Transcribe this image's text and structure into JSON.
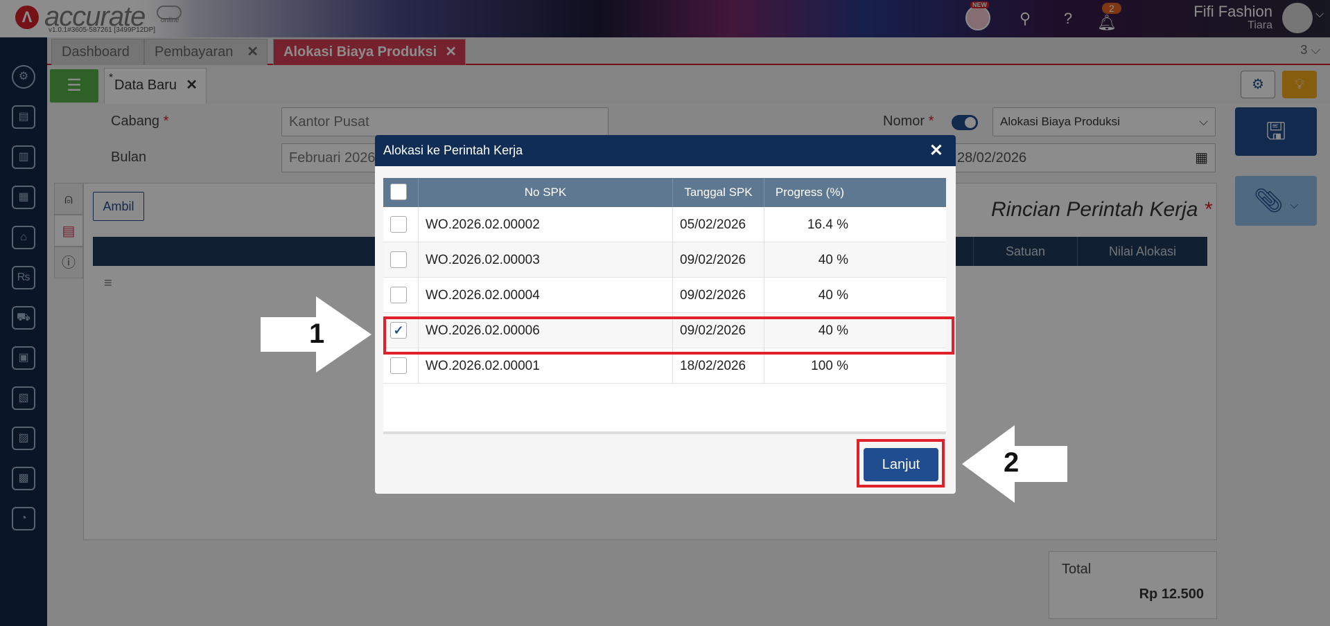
{
  "topbar": {
    "logo_text": "accurate",
    "logo_sub": "online",
    "version": "v1.0.1#3605-587261 [3499P12DP]",
    "new_badge": "NEW",
    "notif_count": "2",
    "user_name": "Fifi Fashion",
    "user_sub": "Tiara"
  },
  "tabs": [
    {
      "label": "Dashboard"
    },
    {
      "label": "Pembayaran"
    },
    {
      "label": "Alokasi Biaya Produksi"
    }
  ],
  "tab_count": "3 ⌵",
  "subtab": {
    "label": "Data Baru"
  },
  "form": {
    "cabang_label": "Cabang",
    "cabang_value": "Kantor Pusat",
    "bulan_label": "Bulan",
    "bulan_value": "Februari 2026",
    "nomor_label": "Nomor",
    "nomor_select": "Alokasi Biaya Produksi",
    "date_value": "28/02/2026"
  },
  "panel": {
    "ambil_label": "Ambil",
    "rincian_title": "Rincian Perintah Kerja",
    "col_satuan": "Satuan",
    "col_nilai": "Nilai Alokasi"
  },
  "total": {
    "label": "Total",
    "value": "Rp 12.500"
  },
  "modal": {
    "title": "Alokasi ke Perintah Kerja",
    "col_no": "No SPK",
    "col_tanggal": "Tanggal SPK",
    "col_progress": "Progress (%)",
    "rows": [
      {
        "no": "WO.2026.02.00002",
        "tanggal": "05/02/2026",
        "progress": "16.4 %",
        "checked": false
      },
      {
        "no": "WO.2026.02.00003",
        "tanggal": "09/02/2026",
        "progress": "40 %",
        "checked": false
      },
      {
        "no": "WO.2026.02.00004",
        "tanggal": "09/02/2026",
        "progress": "40 %",
        "checked": false
      },
      {
        "no": "WO.2026.02.00006",
        "tanggal": "09/02/2026",
        "progress": "40 %",
        "checked": true
      },
      {
        "no": "WO.2026.02.00001",
        "tanggal": "18/02/2026",
        "progress": "100 %",
        "checked": false
      }
    ],
    "lanjut_label": "Lanjut"
  },
  "annotations": {
    "step1": "1",
    "step2": "2",
    "highlight_color": "#e0202a"
  }
}
